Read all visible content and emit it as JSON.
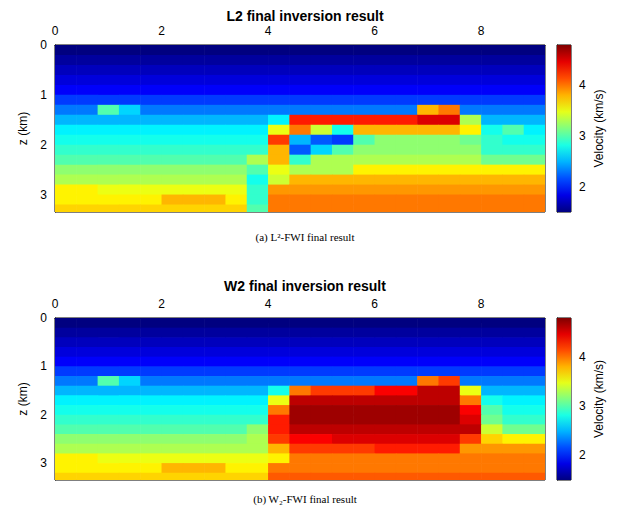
{
  "chart_data": [
    {
      "type": "heatmap",
      "title": "L2 final inversion result",
      "caption": "(a) L²-FWI final result",
      "y_label": "z (km)",
      "xlim": [
        0,
        9.2
      ],
      "xticks": [
        0,
        2,
        4,
        6,
        8
      ],
      "ylim": [
        0,
        3.35
      ],
      "yticks": [
        0,
        1,
        2,
        3
      ],
      "colorbar": {
        "label": "Velocity (km/s)",
        "lim": [
          1.5,
          4.8
        ],
        "ticks": [
          2,
          3,
          4
        ]
      },
      "x": [
        0.2,
        0.6,
        1.0,
        1.4,
        1.8,
        2.2,
        2.6,
        3.0,
        3.4,
        3.8,
        4.2,
        4.6,
        5.0,
        5.4,
        5.8,
        6.2,
        6.6,
        7.0,
        7.4,
        7.8,
        8.2,
        8.6,
        9.0
      ],
      "y": [
        0.1,
        0.3,
        0.5,
        0.7,
        0.9,
        1.1,
        1.3,
        1.5,
        1.7,
        1.9,
        2.1,
        2.3,
        2.5,
        2.7,
        2.9,
        3.1,
        3.3
      ],
      "values": [
        [
          1.5,
          1.5,
          1.5,
          1.5,
          1.5,
          1.5,
          1.5,
          1.5,
          1.5,
          1.5,
          1.5,
          1.5,
          1.5,
          1.5,
          1.5,
          1.5,
          1.5,
          1.5,
          1.5,
          1.5,
          1.5,
          1.5,
          1.5
        ],
        [
          1.6,
          1.6,
          1.6,
          1.6,
          1.6,
          1.6,
          1.6,
          1.6,
          1.6,
          1.6,
          1.6,
          1.6,
          1.6,
          1.6,
          1.6,
          1.6,
          1.6,
          1.6,
          1.6,
          1.6,
          1.6,
          1.6,
          1.6
        ],
        [
          1.7,
          1.7,
          1.7,
          1.7,
          1.7,
          1.7,
          1.7,
          1.7,
          1.7,
          1.7,
          1.7,
          1.7,
          1.7,
          1.7,
          1.7,
          1.7,
          1.7,
          1.7,
          1.7,
          1.7,
          1.7,
          1.7,
          1.7
        ],
        [
          1.8,
          1.8,
          1.8,
          1.8,
          1.8,
          1.8,
          1.8,
          1.8,
          1.8,
          1.8,
          1.8,
          1.8,
          1.8,
          1.8,
          1.8,
          1.8,
          1.8,
          1.8,
          1.8,
          1.8,
          1.8,
          1.8,
          1.8
        ],
        [
          1.9,
          1.9,
          1.9,
          1.9,
          1.9,
          1.9,
          1.9,
          1.9,
          1.9,
          1.9,
          1.9,
          1.9,
          1.9,
          1.9,
          1.9,
          1.9,
          1.9,
          1.9,
          1.9,
          1.9,
          1.9,
          1.9,
          1.9
        ],
        [
          2.1,
          2.1,
          2.1,
          2.1,
          2.1,
          2.1,
          2.1,
          2.1,
          2.1,
          2.1,
          2.1,
          2.1,
          2.1,
          2.1,
          2.1,
          2.1,
          2.1,
          2.1,
          2.1,
          2.1,
          2.1,
          2.1,
          2.1
        ],
        [
          2.3,
          2.3,
          3.0,
          2.6,
          2.3,
          2.3,
          2.3,
          2.3,
          2.3,
          2.3,
          2.3,
          2.3,
          2.3,
          2.3,
          2.3,
          2.3,
          2.3,
          3.8,
          4.0,
          2.3,
          2.3,
          2.3,
          2.3
        ],
        [
          2.5,
          2.5,
          2.5,
          2.5,
          2.5,
          2.5,
          2.5,
          2.5,
          2.5,
          2.5,
          2.7,
          4.3,
          4.3,
          4.3,
          4.3,
          4.3,
          4.3,
          4.5,
          4.5,
          3.3,
          2.5,
          2.5,
          2.5
        ],
        [
          2.7,
          2.7,
          2.7,
          2.7,
          2.7,
          2.7,
          2.7,
          2.7,
          2.7,
          2.7,
          3.5,
          4.0,
          3.4,
          2.8,
          3.8,
          3.8,
          3.8,
          3.8,
          3.8,
          3.6,
          2.8,
          3.0,
          2.7
        ],
        [
          2.8,
          2.8,
          2.8,
          2.8,
          2.8,
          2.8,
          2.8,
          2.8,
          2.8,
          2.8,
          4.2,
          2.5,
          2.2,
          2.1,
          3.0,
          3.2,
          3.2,
          3.2,
          3.2,
          3.1,
          2.9,
          2.8,
          2.8
        ],
        [
          2.9,
          2.9,
          2.9,
          2.9,
          2.9,
          2.9,
          2.9,
          2.9,
          2.9,
          2.9,
          3.8,
          2.2,
          2.6,
          3.0,
          3.2,
          3.2,
          3.2,
          3.2,
          3.2,
          3.2,
          2.9,
          2.9,
          2.9
        ],
        [
          3.0,
          3.0,
          3.0,
          3.0,
          3.0,
          3.0,
          3.0,
          3.0,
          3.0,
          3.3,
          3.8,
          2.9,
          3.3,
          3.3,
          3.3,
          3.3,
          3.3,
          3.3,
          3.3,
          3.3,
          3.1,
          3.1,
          3.1
        ],
        [
          3.2,
          3.2,
          3.2,
          3.2,
          3.2,
          3.2,
          3.2,
          3.2,
          3.2,
          3.0,
          3.5,
          3.3,
          3.3,
          3.3,
          3.6,
          3.6,
          3.6,
          3.6,
          3.6,
          3.6,
          3.6,
          3.6,
          3.6
        ],
        [
          3.3,
          3.3,
          3.3,
          3.3,
          3.3,
          3.3,
          3.3,
          3.3,
          3.3,
          2.8,
          3.4,
          3.8,
          3.8,
          3.8,
          3.8,
          3.8,
          3.8,
          3.8,
          3.8,
          3.8,
          3.8,
          3.8,
          3.8
        ],
        [
          3.6,
          3.6,
          3.5,
          3.5,
          3.5,
          3.5,
          3.5,
          3.5,
          3.5,
          2.9,
          3.9,
          3.9,
          3.9,
          3.9,
          3.9,
          3.9,
          3.9,
          3.9,
          3.9,
          3.9,
          3.9,
          3.9,
          3.9
        ],
        [
          3.6,
          3.6,
          3.6,
          3.6,
          3.6,
          3.8,
          3.8,
          3.8,
          3.6,
          2.9,
          4.0,
          4.0,
          4.0,
          4.0,
          4.0,
          4.0,
          4.0,
          4.0,
          4.0,
          4.0,
          4.0,
          4.0,
          4.0
        ],
        [
          3.7,
          3.7,
          3.7,
          3.7,
          3.7,
          3.7,
          3.7,
          3.7,
          3.7,
          3.0,
          4.0,
          4.0,
          4.0,
          4.0,
          4.0,
          4.0,
          4.0,
          4.0,
          4.0,
          4.0,
          4.0,
          4.0,
          4.0
        ]
      ]
    },
    {
      "type": "heatmap",
      "title": "W2 final inversion result",
      "caption": "(b) W₂-FWI final result",
      "y_label": "z (km)",
      "xlim": [
        0,
        9.2
      ],
      "xticks": [
        0,
        2,
        4,
        6,
        8
      ],
      "ylim": [
        0,
        3.35
      ],
      "yticks": [
        0,
        1,
        2,
        3
      ],
      "colorbar": {
        "label": "Velocity (km/s)",
        "lim": [
          1.5,
          4.8
        ],
        "ticks": [
          2,
          3,
          4
        ]
      },
      "x": [
        0.2,
        0.6,
        1.0,
        1.4,
        1.8,
        2.2,
        2.6,
        3.0,
        3.4,
        3.8,
        4.2,
        4.6,
        5.0,
        5.4,
        5.8,
        6.2,
        6.6,
        7.0,
        7.4,
        7.8,
        8.2,
        8.6,
        9.0
      ],
      "y": [
        0.1,
        0.3,
        0.5,
        0.7,
        0.9,
        1.1,
        1.3,
        1.5,
        1.7,
        1.9,
        2.1,
        2.3,
        2.5,
        2.7,
        2.9,
        3.1,
        3.3
      ],
      "values": [
        [
          1.5,
          1.5,
          1.5,
          1.5,
          1.5,
          1.5,
          1.5,
          1.5,
          1.5,
          1.5,
          1.5,
          1.5,
          1.5,
          1.5,
          1.5,
          1.5,
          1.5,
          1.5,
          1.5,
          1.5,
          1.5,
          1.5,
          1.5
        ],
        [
          1.6,
          1.6,
          1.6,
          1.6,
          1.6,
          1.6,
          1.6,
          1.6,
          1.6,
          1.6,
          1.6,
          1.6,
          1.6,
          1.6,
          1.6,
          1.6,
          1.6,
          1.6,
          1.6,
          1.6,
          1.6,
          1.6,
          1.6
        ],
        [
          1.7,
          1.7,
          1.7,
          1.7,
          1.7,
          1.7,
          1.7,
          1.7,
          1.7,
          1.7,
          1.7,
          1.7,
          1.7,
          1.7,
          1.7,
          1.7,
          1.7,
          1.7,
          1.7,
          1.7,
          1.7,
          1.7,
          1.7
        ],
        [
          1.8,
          1.8,
          1.8,
          1.8,
          1.8,
          1.8,
          1.8,
          1.8,
          1.8,
          1.8,
          1.8,
          1.8,
          1.8,
          1.8,
          1.8,
          1.8,
          1.8,
          1.8,
          1.8,
          1.8,
          1.8,
          1.8,
          1.8
        ],
        [
          1.9,
          1.9,
          1.9,
          1.9,
          1.9,
          1.9,
          1.9,
          1.9,
          1.9,
          1.9,
          1.9,
          1.9,
          1.9,
          1.9,
          1.9,
          1.9,
          1.9,
          1.9,
          1.9,
          1.9,
          1.9,
          1.9,
          1.9
        ],
        [
          2.1,
          2.1,
          2.1,
          2.1,
          2.1,
          2.1,
          2.1,
          2.1,
          2.1,
          2.1,
          2.1,
          2.1,
          2.1,
          2.1,
          2.1,
          2.1,
          2.1,
          2.1,
          2.1,
          2.1,
          2.1,
          2.1,
          2.1
        ],
        [
          2.3,
          2.3,
          3.0,
          2.6,
          2.3,
          2.3,
          2.3,
          2.3,
          2.3,
          2.3,
          2.3,
          2.3,
          2.3,
          2.3,
          2.3,
          2.3,
          2.3,
          4.0,
          4.2,
          2.3,
          2.3,
          2.3,
          2.3
        ],
        [
          2.5,
          2.5,
          2.5,
          2.5,
          2.5,
          2.5,
          2.5,
          2.5,
          2.5,
          2.5,
          2.8,
          4.0,
          4.2,
          4.2,
          4.2,
          4.4,
          4.4,
          4.6,
          4.6,
          3.5,
          2.5,
          2.5,
          2.5
        ],
        [
          2.7,
          2.7,
          2.7,
          2.7,
          2.7,
          2.7,
          2.7,
          2.7,
          2.7,
          2.7,
          3.5,
          4.6,
          4.6,
          4.6,
          4.6,
          4.6,
          4.6,
          4.6,
          4.6,
          4.0,
          2.8,
          2.7,
          2.7
        ],
        [
          2.8,
          2.8,
          2.8,
          2.8,
          2.8,
          2.8,
          2.8,
          2.8,
          2.8,
          2.8,
          4.0,
          4.7,
          4.7,
          4.7,
          4.7,
          4.7,
          4.7,
          4.7,
          4.7,
          4.4,
          3.0,
          2.8,
          2.8
        ],
        [
          2.9,
          2.9,
          2.9,
          2.9,
          2.9,
          2.9,
          2.9,
          2.9,
          2.9,
          2.9,
          4.3,
          4.7,
          4.7,
          4.7,
          4.7,
          4.7,
          4.7,
          4.7,
          4.7,
          4.5,
          3.1,
          2.9,
          2.9
        ],
        [
          3.0,
          3.0,
          3.0,
          3.0,
          3.0,
          3.0,
          3.0,
          3.0,
          3.0,
          3.2,
          4.3,
          4.6,
          4.6,
          4.6,
          4.6,
          4.6,
          4.6,
          4.6,
          4.6,
          4.6,
          3.4,
          3.1,
          3.1
        ],
        [
          3.2,
          3.2,
          3.2,
          3.2,
          3.2,
          3.2,
          3.2,
          3.2,
          3.2,
          3.3,
          4.2,
          4.4,
          4.4,
          4.5,
          4.5,
          4.5,
          4.5,
          4.5,
          4.5,
          4.2,
          3.7,
          3.6,
          3.6
        ],
        [
          3.3,
          3.3,
          3.3,
          3.3,
          3.3,
          3.3,
          3.3,
          3.3,
          3.3,
          3.3,
          3.8,
          4.2,
          4.2,
          4.2,
          4.2,
          4.3,
          4.3,
          4.3,
          4.3,
          3.9,
          3.9,
          3.9,
          3.9
        ],
        [
          3.6,
          3.6,
          3.5,
          3.5,
          3.5,
          3.5,
          3.5,
          3.5,
          3.5,
          3.5,
          3.6,
          4.0,
          4.0,
          4.0,
          4.0,
          4.0,
          4.0,
          4.0,
          4.0,
          4.0,
          4.0,
          4.0,
          4.0
        ],
        [
          3.6,
          3.6,
          3.6,
          3.6,
          3.6,
          3.8,
          3.8,
          3.8,
          3.6,
          3.6,
          4.0,
          4.0,
          4.0,
          4.0,
          4.0,
          4.0,
          4.0,
          4.0,
          4.0,
          4.0,
          4.0,
          4.0,
          4.0
        ],
        [
          3.7,
          3.7,
          3.7,
          3.7,
          3.7,
          3.7,
          3.7,
          3.7,
          3.7,
          3.7,
          4.1,
          4.1,
          4.1,
          4.1,
          4.1,
          4.1,
          4.1,
          4.1,
          4.1,
          4.1,
          4.1,
          4.1,
          4.1
        ]
      ]
    }
  ]
}
